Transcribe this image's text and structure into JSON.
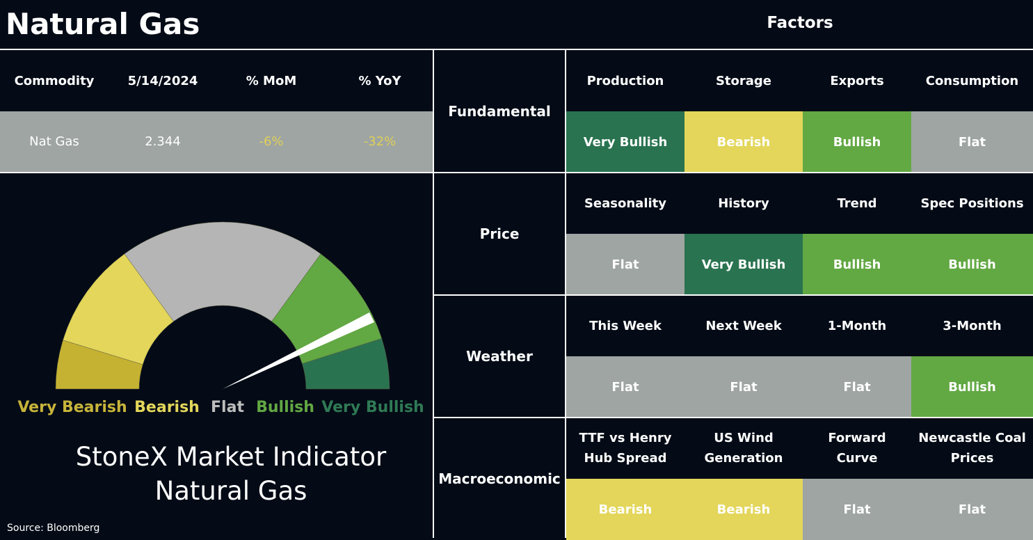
{
  "header": {
    "title": "Natural Gas",
    "factors_title": "Factors"
  },
  "commodity_table": {
    "columns": [
      "Commodity",
      "5/14/2024",
      "% MoM",
      "% YoY"
    ],
    "row": [
      "Nat Gas",
      "2.344",
      "-6%",
      "-32%"
    ],
    "row_colors": [
      "#ffffff",
      "#ffffff",
      "#e0cf57",
      "#e0cf57"
    ]
  },
  "gauge": {
    "segments": [
      {
        "label": "Very Bearish",
        "color": "#c6b232",
        "label_color": "#c8b43a"
      },
      {
        "label": "Bearish",
        "color": "#e3d65a",
        "label_color": "#e3d65a"
      },
      {
        "label": "Flat",
        "color": "#b5b5b5",
        "label_color": "#bdbdbd"
      },
      {
        "label": "Bullish",
        "color": "#62a843",
        "label_color": "#62a843"
      },
      {
        "label": "Very Bullish",
        "color": "#2a7350",
        "label_color": "#2f7a55"
      }
    ],
    "title_lines": [
      "StoneX Market Indicator",
      "Natural Gas"
    ]
  },
  "source": "Source: Bloomberg",
  "factor_groups": [
    {
      "name": "Fundamental",
      "factors": [
        {
          "name": "Production",
          "signal": "Very Bullish",
          "color": "#2a7350"
        },
        {
          "name": "Storage",
          "signal": "Bearish",
          "color": "#e3d65a"
        },
        {
          "name": "Exports",
          "signal": "Bullish",
          "color": "#62a843"
        },
        {
          "name": "Consumption",
          "signal": "Flat",
          "color": "#9ea5a3"
        }
      ]
    },
    {
      "name": "Price",
      "factors": [
        {
          "name": "Seasonality",
          "signal": "Flat",
          "color": "#9ea5a3"
        },
        {
          "name": "History",
          "signal": "Very Bullish",
          "color": "#2a7350"
        },
        {
          "name": "Trend",
          "signal": "Bullish",
          "color": "#62a843"
        },
        {
          "name": "Spec Positions",
          "signal": "Bullish",
          "color": "#62a843"
        }
      ]
    },
    {
      "name": "Weather",
      "factors": [
        {
          "name": "This Week",
          "signal": "Flat",
          "color": "#9ea5a3"
        },
        {
          "name": "Next Week",
          "signal": "Flat",
          "color": "#9ea5a3"
        },
        {
          "name": "1-Month",
          "signal": "Flat",
          "color": "#9ea5a3"
        },
        {
          "name": "3-Month",
          "signal": "Bullish",
          "color": "#62a843"
        }
      ]
    },
    {
      "name": "Macroeconomic",
      "factors": [
        {
          "name": "TTF vs Henry Hub Spread",
          "signal": "Bearish",
          "color": "#e3d65a"
        },
        {
          "name": "US Wind Generation",
          "signal": "Bearish",
          "color": "#e3d65a"
        },
        {
          "name": "Forward Curve",
          "signal": "Flat",
          "color": "#9ea5a3"
        },
        {
          "name": "Newcastle Coal Prices",
          "signal": "Flat",
          "color": "#9ea5a3"
        }
      ]
    }
  ]
}
